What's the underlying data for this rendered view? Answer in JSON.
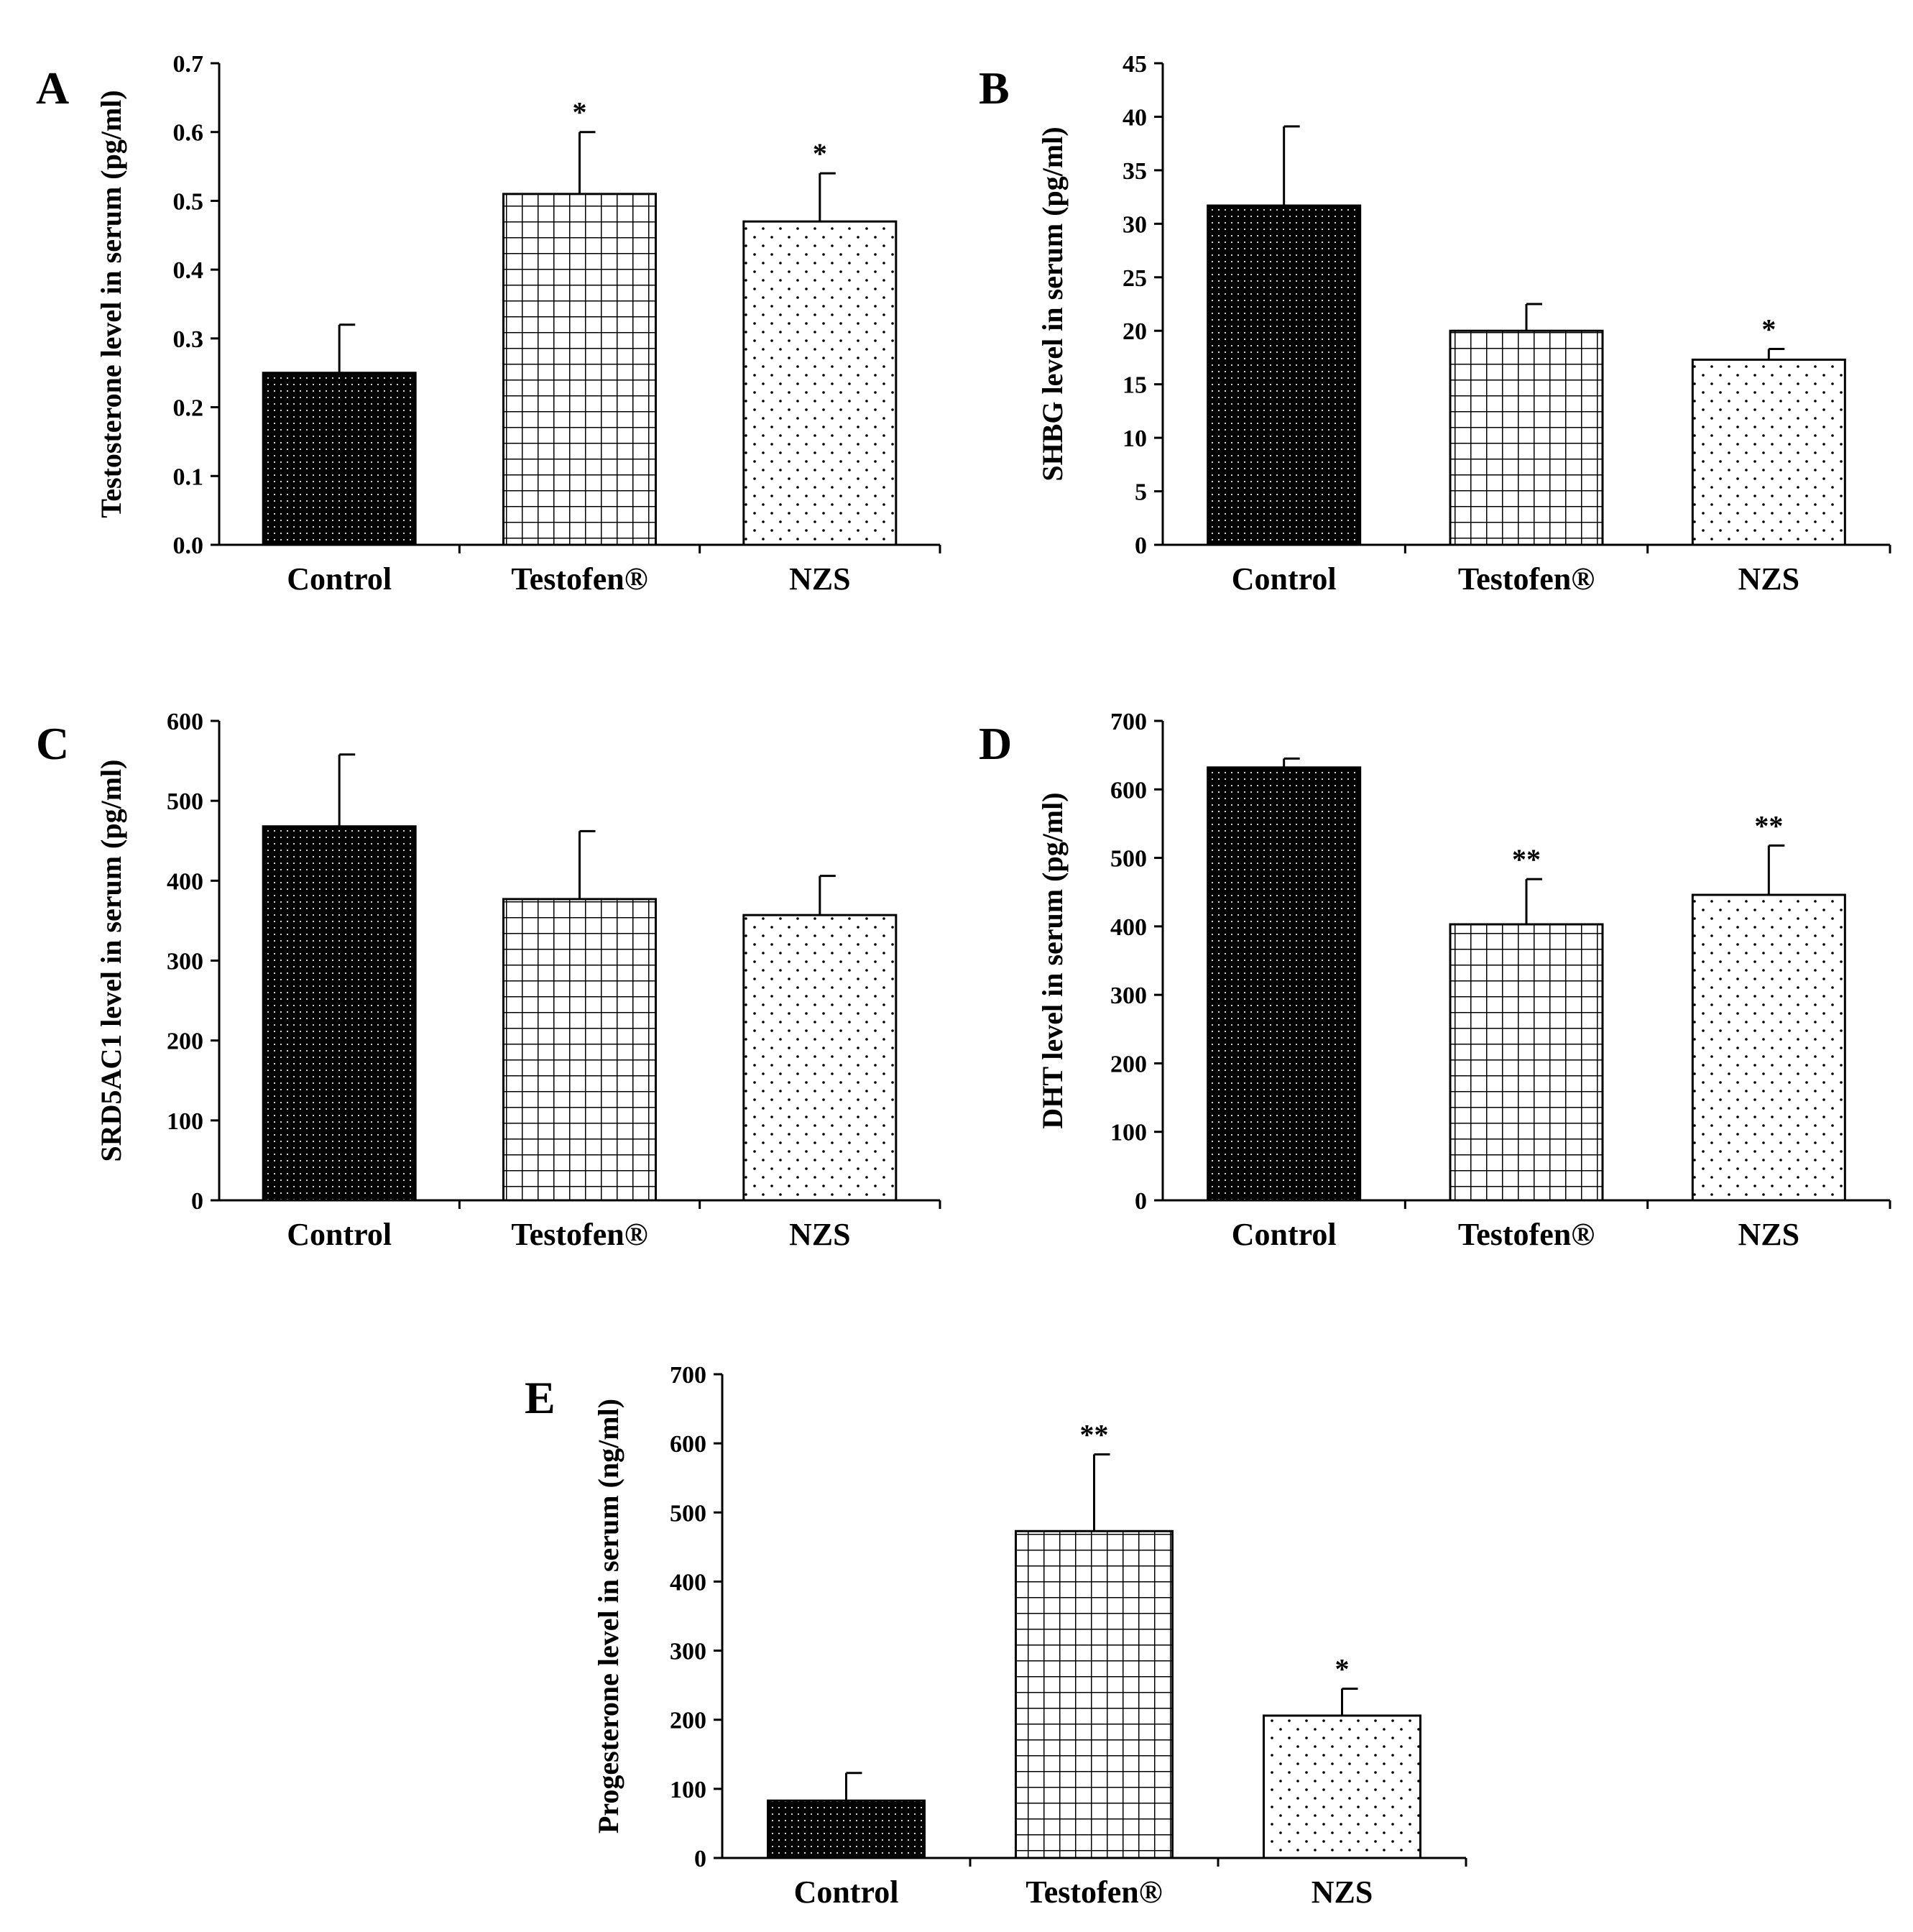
{
  "chart_data": [
    {
      "id": "A",
      "panel_letter": "A",
      "type": "bar",
      "ylabel": "Testosterone level in serum (pg/ml)",
      "categories": [
        "Control",
        "Testofen®",
        "NZS"
      ],
      "values": [
        0.25,
        0.51,
        0.47
      ],
      "errors": [
        0.07,
        0.09,
        0.07
      ],
      "significance": [
        "",
        "*",
        "*"
      ],
      "ylim": [
        0,
        0.7
      ],
      "yticks": [
        "0.0",
        "0.1",
        "0.2",
        "0.3",
        "0.4",
        "0.5",
        "0.6",
        "0.7"
      ],
      "patterns": [
        "dense-dots",
        "grid",
        "sparse-dots"
      ]
    },
    {
      "id": "B",
      "panel_letter": "B",
      "type": "bar",
      "ylabel": "SHBG level in serum (pg/ml)",
      "categories": [
        "Control",
        "Testofen®",
        "NZS"
      ],
      "values": [
        31.7,
        20.0,
        17.3
      ],
      "errors": [
        7.4,
        2.5,
        1.0
      ],
      "significance": [
        "",
        "",
        "*"
      ],
      "ylim": [
        0,
        45
      ],
      "yticks": [
        "0",
        "5",
        "10",
        "15",
        "20",
        "25",
        "30",
        "35",
        "40",
        "45"
      ],
      "patterns": [
        "dense-dots",
        "grid",
        "sparse-dots"
      ]
    },
    {
      "id": "C",
      "panel_letter": "C",
      "type": "bar",
      "ylabel": "SRD5AC1  level in serum (pg/ml)",
      "categories": [
        "Control",
        "Testofen®",
        "NZS"
      ],
      "values": [
        468,
        377,
        357
      ],
      "errors": [
        90,
        85,
        49
      ],
      "significance": [
        "",
        "",
        ""
      ],
      "ylim": [
        0,
        600
      ],
      "yticks": [
        "0",
        "100",
        "200",
        "300",
        "400",
        "500",
        "600"
      ],
      "patterns": [
        "dense-dots",
        "grid",
        "sparse-dots"
      ]
    },
    {
      "id": "D",
      "panel_letter": "D",
      "type": "bar",
      "ylabel": "DHT level in serum (pg/ml)",
      "categories": [
        "Control",
        "Testofen®",
        "NZS"
      ],
      "values": [
        632,
        403,
        446
      ],
      "errors": [
        13,
        66,
        72
      ],
      "significance": [
        "",
        "**",
        "**"
      ],
      "ylim": [
        0,
        700
      ],
      "yticks": [
        "0",
        "100",
        "200",
        "300",
        "400",
        "500",
        "600",
        "700"
      ],
      "patterns": [
        "dense-dots",
        "grid",
        "sparse-dots"
      ]
    },
    {
      "id": "E",
      "panel_letter": "E",
      "type": "bar",
      "ylabel": "Progesterone level in serum (ng/ml)",
      "categories": [
        "Control",
        "Testofen®",
        "NZS"
      ],
      "values": [
        83,
        473,
        206
      ],
      "errors": [
        40,
        111,
        39
      ],
      "significance": [
        "",
        "**",
        "*"
      ],
      "ylim": [
        0,
        700
      ],
      "yticks": [
        "0",
        "100",
        "200",
        "300",
        "400",
        "500",
        "600",
        "700"
      ],
      "patterns": [
        "dense-dots",
        "grid",
        "sparse-dots"
      ]
    }
  ]
}
